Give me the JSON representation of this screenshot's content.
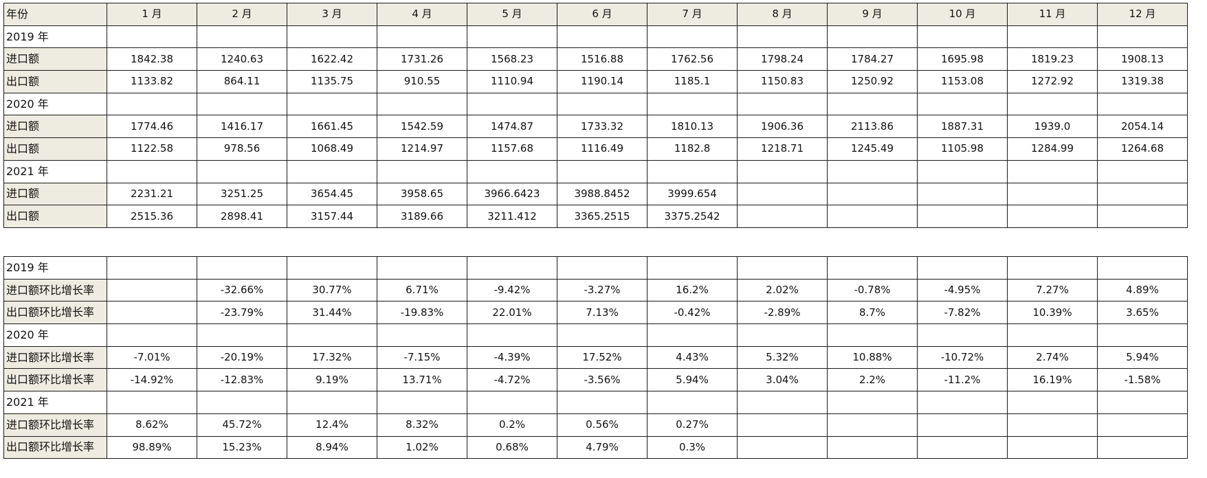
{
  "header": {
    "label": "年份",
    "months": [
      "1 月",
      "2 月",
      "3 月",
      "4 月",
      "5 月",
      "6 月",
      "7 月",
      "8 月",
      "9 月",
      "10 月",
      "11 月",
      "12 月"
    ]
  },
  "values_table": [
    {
      "label": "2019 年",
      "cells": [
        "",
        "",
        "",
        "",
        "",
        "",
        "",
        "",
        "",
        "",
        "",
        ""
      ]
    },
    {
      "label": "进口额",
      "cells": [
        "1842.38",
        "1240.63",
        "1622.42",
        "1731.26",
        "1568.23",
        "1516.88",
        "1762.56",
        "1798.24",
        "1784.27",
        "1695.98",
        "1819.23",
        "1908.13"
      ]
    },
    {
      "label": "出口额",
      "cells": [
        "1133.82",
        "864.11",
        "1135.75",
        "910.55",
        "1110.94",
        "1190.14",
        "1185.1",
        "1150.83",
        "1250.92",
        "1153.08",
        "1272.92",
        "1319.38"
      ]
    },
    {
      "label": "2020 年",
      "cells": [
        "",
        "",
        "",
        "",
        "",
        "",
        "",
        "",
        "",
        "",
        "",
        ""
      ]
    },
    {
      "label": "进口额",
      "cells": [
        "1774.46",
        "1416.17",
        "1661.45",
        "1542.59",
        "1474.87",
        "1733.32",
        "1810.13",
        "1906.36",
        "2113.86",
        "1887.31",
        "1939.0",
        "2054.14"
      ]
    },
    {
      "label": "出口额",
      "cells": [
        "1122.58",
        "978.56",
        "1068.49",
        "1214.97",
        "1157.68",
        "1116.49",
        "1182.8",
        "1218.71",
        "1245.49",
        "1105.98",
        "1284.99",
        "1264.68"
      ]
    },
    {
      "label": "2021 年",
      "cells": [
        "",
        "",
        "",
        "",
        "",
        "",
        "",
        "",
        "",
        "",
        "",
        ""
      ]
    },
    {
      "label": "进口额",
      "cells": [
        "2231.21",
        "3251.25",
        "3654.45",
        "3958.65",
        "3966.6423",
        "3988.8452",
        "3999.654",
        "",
        "",
        "",
        "",
        ""
      ]
    },
    {
      "label": "出口额",
      "cells": [
        "2515.36",
        "2898.41",
        "3157.44",
        "3189.66",
        "3211.412",
        "3365.2515",
        "3375.2542",
        "",
        "",
        "",
        "",
        ""
      ]
    }
  ],
  "rates_table": [
    {
      "label": "2019 年",
      "cells": [
        "",
        "",
        "",
        "",
        "",
        "",
        "",
        "",
        "",
        "",
        "",
        ""
      ]
    },
    {
      "label": "进口额环比增长率",
      "cells": [
        "",
        "-32.66%",
        "30.77%",
        "6.71%",
        "-9.42%",
        "-3.27%",
        "16.2%",
        "2.02%",
        "-0.78%",
        "-4.95%",
        "7.27%",
        "4.89%"
      ]
    },
    {
      "label": "出口额环比增长率",
      "cells": [
        "",
        "-23.79%",
        "31.44%",
        "-19.83%",
        "22.01%",
        "7.13%",
        "-0.42%",
        "-2.89%",
        "8.7%",
        "-7.82%",
        "10.39%",
        "3.65%"
      ]
    },
    {
      "label": "2020 年",
      "cells": [
        "",
        "",
        "",
        "",
        "",
        "",
        "",
        "",
        "",
        "",
        "",
        ""
      ]
    },
    {
      "label": "进口额环比增长率",
      "cells": [
        "-7.01%",
        "-20.19%",
        "17.32%",
        "-7.15%",
        "-4.39%",
        "17.52%",
        "4.43%",
        "5.32%",
        "10.88%",
        "-10.72%",
        "2.74%",
        "5.94%"
      ]
    },
    {
      "label": "出口额环比增长率",
      "cells": [
        "-14.92%",
        "-12.83%",
        "9.19%",
        "13.71%",
        "-4.72%",
        "-3.56%",
        "5.94%",
        "3.04%",
        "2.2%",
        "-11.2%",
        "16.19%",
        "-1.58%"
      ]
    },
    {
      "label": "2021 年",
      "cells": [
        "",
        "",
        "",
        "",
        "",
        "",
        "",
        "",
        "",
        "",
        "",
        ""
      ]
    },
    {
      "label": "进口额环比增长率",
      "cells": [
        "8.62%",
        "45.72%",
        "12.4%",
        "8.32%",
        "0.2%",
        "0.56%",
        "0.27%",
        "",
        "",
        "",
        "",
        ""
      ]
    },
    {
      "label": "出口额环比增长率",
      "cells": [
        "98.89%",
        "15.23%",
        "8.94%",
        "1.02%",
        "0.68%",
        "4.79%",
        "0.3%",
        "",
        "",
        "",
        "",
        ""
      ]
    }
  ],
  "colors": {
    "label_shade": "#eeece1",
    "border": "#1a1a1a"
  }
}
